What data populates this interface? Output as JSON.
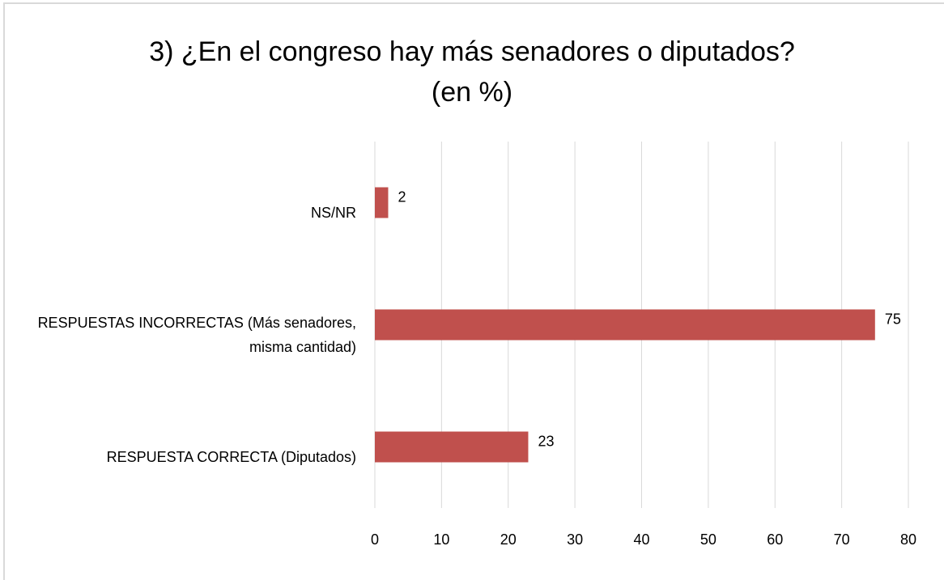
{
  "chart_data": {
    "type": "hbar",
    "title": "3) ¿En el congreso hay más senadores o diputados?",
    "subtitle": "(en %)",
    "categories": [
      "NS/NR",
      "RESPUESTAS INCORRECTAS (Más senadores, misma cantidad)",
      "RESPUESTA CORRECTA (Diputados)"
    ],
    "values": [
      2,
      75,
      23
    ],
    "color": "#c0504d",
    "xlim": [
      0,
      80
    ],
    "xticks": [
      0,
      10,
      20,
      30,
      40,
      50,
      60,
      70,
      80
    ],
    "grid": true
  }
}
